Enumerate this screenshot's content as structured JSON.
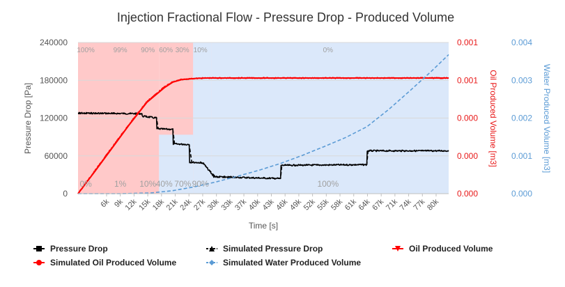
{
  "chart_data": {
    "type": "line",
    "title": "Injection Fractional Flow - Pressure Drop - Produced Volume",
    "xlabel": "Time [s]",
    "ylabel_left": "Pressure Drop [Pa]",
    "ylabel_right1": "Oil Produced Volume [m3]",
    "ylabel_right2": "Water Produced Volume [m3]",
    "x_range": [
      0,
      86000
    ],
    "ylim_left": [
      0,
      240000
    ],
    "ylim_right1": [
      0,
      0.001
    ],
    "ylim_right2": [
      0,
      0.004
    ],
    "x_ticks": [
      "6k",
      "9k",
      "12k",
      "15k",
      "18k",
      "21k",
      "24k",
      "27k",
      "30k",
      "33k",
      "37k",
      "40k",
      "43k",
      "46k",
      "49k",
      "52k",
      "55k",
      "58k",
      "61k",
      "64k",
      "67k",
      "71k",
      "74k",
      "77k",
      "80k"
    ],
    "y_left_ticks": [
      "0",
      "60000",
      "120000",
      "180000",
      "240000"
    ],
    "y_right1_ticks": [
      "0.000",
      "0.000",
      "0.000",
      "0.001",
      "0.001"
    ],
    "y_right2_ticks": [
      "0.000",
      "0.001",
      "0.002",
      "0.003",
      "0.004"
    ],
    "fractional_flow_bands": [
      {
        "x_start": 0,
        "x_end": 18800,
        "top_label": "",
        "bottom_label": "0%",
        "color": "#ffc9c9"
      },
      {
        "x_start": 18800,
        "x_end": 26700,
        "top_label": "",
        "bottom_label": "",
        "color": "#ffc9c9"
      },
      {
        "x_start": 26700,
        "x_end": 31000,
        "top_label": "",
        "bottom_label": "",
        "color": "#ffc9c9"
      },
      {
        "x_start": 31000,
        "x_end": 86000,
        "top_label": "0%",
        "bottom_label": "100%",
        "color": "#dbe8fa"
      }
    ],
    "water_bands": [
      {
        "x_start": 18800,
        "x_end": 26700
      },
      {
        "x_start": 26700,
        "x_end": 31000
      }
    ],
    "top_labels": [
      {
        "x": 1800,
        "text": "100%"
      },
      {
        "x": 9800,
        "text": "99%"
      },
      {
        "x": 16200,
        "text": "90%"
      },
      {
        "x": 20400,
        "text": "60%"
      },
      {
        "x": 24200,
        "text": "30%"
      },
      {
        "x": 28400,
        "text": "10%"
      },
      {
        "x": 58000,
        "text": "0%"
      }
    ],
    "bottom_labels": [
      {
        "x": 1800,
        "text": "0%"
      },
      {
        "x": 9800,
        "text": "1%"
      },
      {
        "x": 16200,
        "text": "10%"
      },
      {
        "x": 20000,
        "text": "40%"
      },
      {
        "x": 24300,
        "text": "70%"
      },
      {
        "x": 28400,
        "text": "90%"
      },
      {
        "x": 58000,
        "text": "100%"
      }
    ],
    "series": [
      {
        "name": "Pressure Drop",
        "axis": "left",
        "color": "#000000",
        "x": [
          0,
          14800,
          14900,
          18200,
          18300,
          22000,
          22100,
          25800,
          25900,
          29000,
          31500,
          47000,
          47100,
          67000,
          67100,
          86000
        ],
        "y": [
          128000,
          127000,
          123000,
          120000,
          103000,
          102000,
          79000,
          78000,
          50000,
          49000,
          27000,
          24000,
          45000,
          46000,
          68000,
          68000
        ]
      },
      {
        "name": "Simulated Pressure Drop",
        "axis": "left",
        "color": "#000000",
        "x": [
          0,
          14800,
          15000,
          18200,
          18600,
          22000,
          22400,
          25800,
          26400,
          29000,
          32000,
          47000,
          47300,
          67000,
          67300,
          86000
        ],
        "y": [
          127000,
          127000,
          124000,
          121000,
          103000,
          102000,
          79000,
          78000,
          50000,
          48000,
          26000,
          24000,
          45000,
          46000,
          68000,
          68000
        ]
      },
      {
        "name": "Oil Produced Volume",
        "axis": "right1",
        "color": "#ff0000",
        "x": [
          0,
          4000,
          8000,
          12000,
          16000,
          20000,
          22000,
          24000,
          26000,
          28000,
          30000,
          40000,
          60000,
          86000
        ],
        "y": [
          0.0,
          0.000155,
          0.00031,
          0.000465,
          0.00061,
          0.000705,
          0.00074,
          0.000755,
          0.00076,
          0.000763,
          0.000765,
          0.000765,
          0.000765,
          0.000765
        ]
      },
      {
        "name": "Simulated Oil Produced Volume",
        "axis": "right1",
        "color": "#ff0000",
        "x": [
          0,
          4000,
          8000,
          12000,
          16000,
          20000,
          22000,
          24000,
          26000,
          28000,
          30000,
          40000,
          60000,
          86000
        ],
        "y": [
          0.0,
          0.00015,
          0.000305,
          0.00046,
          0.000605,
          0.0007,
          0.000738,
          0.000754,
          0.00076,
          0.000763,
          0.000765,
          0.000765,
          0.000765,
          0.000765
        ]
      },
      {
        "name": "Simulated Water Produced Volume",
        "axis": "right2",
        "color": "#5b9bd5",
        "x": [
          0,
          10000,
          17000,
          22000,
          27000,
          32000,
          37000,
          42000,
          47000,
          52000,
          57000,
          62000,
          67000,
          72000,
          77000,
          82000,
          86000
        ],
        "y": [
          0.0,
          0.0,
          2e-05,
          8e-05,
          0.00018,
          0.00031,
          0.00046,
          0.00062,
          0.0008,
          0.00101,
          0.00124,
          0.00148,
          0.00177,
          0.00222,
          0.00272,
          0.00324,
          0.00368
        ]
      }
    ],
    "legend": [
      {
        "name": "Pressure Drop",
        "marker": "square",
        "color": "#000000",
        "dashed": false
      },
      {
        "name": "Simulated Pressure Drop",
        "marker": "triangle",
        "color": "#000000",
        "dashed": true
      },
      {
        "name": "Oil Produced Volume",
        "marker": "triangle-down",
        "color": "#ff0000",
        "dashed": false
      },
      {
        "name": "Simulated Oil Produced Volume",
        "marker": "circle",
        "color": "#ff0000",
        "dashed": false
      },
      {
        "name": "Simulated Water Produced Volume",
        "marker": "diamond",
        "color": "#5b9bd5",
        "dashed": true
      }
    ],
    "legend_position": "bottom",
    "grid": true
  }
}
